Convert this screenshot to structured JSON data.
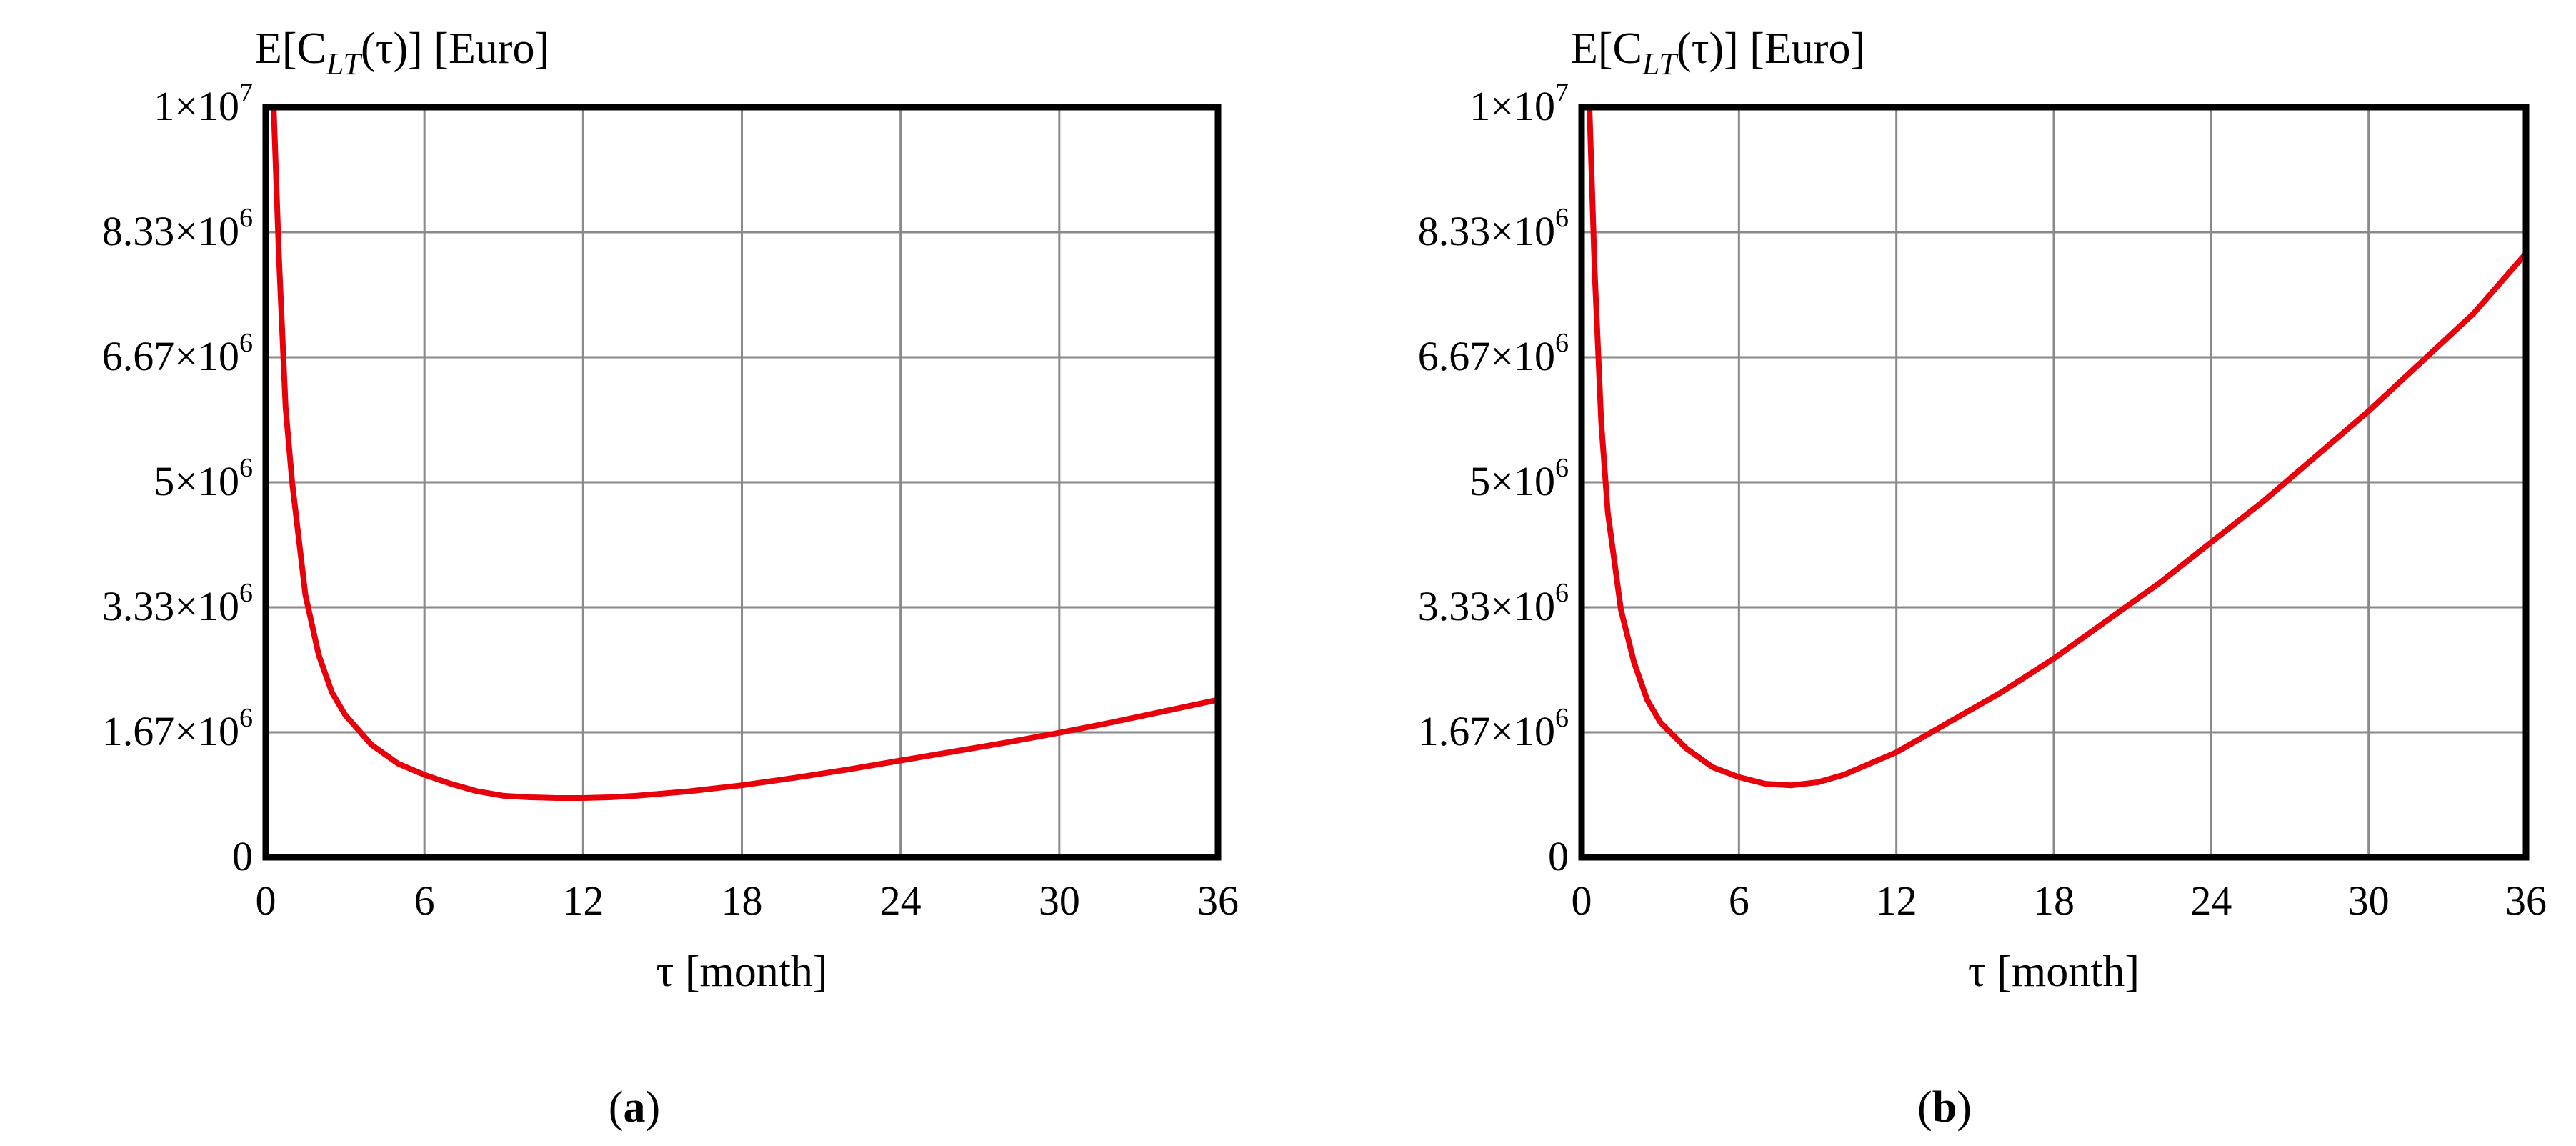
{
  "chart_data": [
    {
      "type": "line",
      "panel_label": "a",
      "ylabel": "E[C_LT(τ)] [Euro]",
      "xlabel": "τ [month]",
      "xlim": [
        0,
        36
      ],
      "ylim": [
        0,
        10000000
      ],
      "xticks": [
        "0",
        "6",
        "12",
        "18",
        "24",
        "30",
        "36"
      ],
      "yticks": [
        {
          "base": "0",
          "exp": ""
        },
        {
          "base": "1.67×10",
          "exp": "6"
        },
        {
          "base": "3.33×10",
          "exp": "6"
        },
        {
          "base": "5×10",
          "exp": "6"
        },
        {
          "base": "6.67×10",
          "exp": "6"
        },
        {
          "base": "8.33×10",
          "exp": "6"
        },
        {
          "base": "1×10",
          "exp": "7"
        }
      ],
      "grid": true,
      "line_color": "#e8000b",
      "series": [
        {
          "x": [
            0.3,
            0.5,
            0.75,
            1,
            1.5,
            2,
            2.5,
            3,
            4,
            5,
            6,
            7,
            8,
            9,
            10,
            11,
            12,
            13,
            14,
            16,
            18,
            20,
            22,
            24,
            26,
            28,
            30,
            32,
            34,
            36
          ],
          "values": [
            10000000,
            8000000,
            6000000,
            5000000,
            3500000,
            2700000,
            2200000,
            1900000,
            1500000,
            1250000,
            1100000,
            980000,
            880000,
            820000,
            800000,
            790000,
            790000,
            800000,
            820000,
            880000,
            960000,
            1060000,
            1170000,
            1290000,
            1410000,
            1530000,
            1660000,
            1800000,
            1950000,
            2100000
          ]
        }
      ]
    },
    {
      "type": "line",
      "panel_label": "b",
      "ylabel": "E[C_LT(τ)] [Euro]",
      "xlabel": "τ [month]",
      "xlim": [
        0,
        36
      ],
      "ylim": [
        0,
        10000000
      ],
      "xticks": [
        "0",
        "6",
        "12",
        "18",
        "24",
        "30",
        "36"
      ],
      "yticks": [
        {
          "base": "0",
          "exp": ""
        },
        {
          "base": "1.67×10",
          "exp": "6"
        },
        {
          "base": "3.33×10",
          "exp": "6"
        },
        {
          "base": "5×10",
          "exp": "6"
        },
        {
          "base": "6.67×10",
          "exp": "6"
        },
        {
          "base": "8.33×10",
          "exp": "6"
        },
        {
          "base": "1×10",
          "exp": "7"
        }
      ],
      "grid": true,
      "line_color": "#e8000b",
      "series": [
        {
          "x": [
            0.3,
            0.5,
            0.75,
            1,
            1.5,
            2,
            2.5,
            3,
            4,
            5,
            6,
            7,
            8,
            9,
            10,
            12,
            14,
            16,
            18,
            20,
            22,
            24,
            26,
            28,
            30,
            32,
            34,
            36
          ],
          "values": [
            10000000,
            7800000,
            5800000,
            4600000,
            3300000,
            2600000,
            2100000,
            1800000,
            1450000,
            1200000,
            1070000,
            980000,
            960000,
            1000000,
            1100000,
            1400000,
            1800000,
            2200000,
            2650000,
            3150000,
            3650000,
            4200000,
            4750000,
            5350000,
            5950000,
            6600000,
            7250000,
            8050000
          ]
        }
      ]
    }
  ]
}
